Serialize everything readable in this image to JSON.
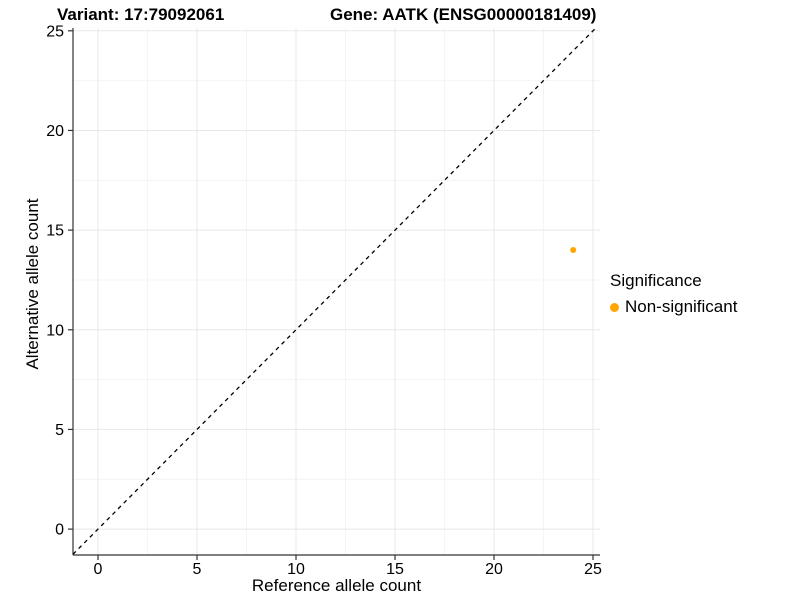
{
  "colors": {
    "accent_orange": "#FFA500",
    "axis_line": "#333333",
    "tick_mark": "#333333",
    "grid_major": "#E8E8E8",
    "grid_minor": "#F4F4F4",
    "reference_line": "#000000",
    "text": "#000000",
    "background": "#FFFFFF"
  },
  "chart_data": {
    "type": "scatter",
    "title_left": "Variant: 17:79092061",
    "title_right": "Gene: AATK (ENSG00000181409)",
    "xlabel": "Reference allele count",
    "ylabel": "Alternative allele count",
    "x_ticks": [
      0,
      5,
      10,
      15,
      20,
      25
    ],
    "y_ticks": [
      0,
      5,
      10,
      15,
      20,
      25
    ],
    "minor_ticks": [
      2.5,
      7.5,
      12.5,
      17.5,
      22.5
    ],
    "xlim": [
      -1.263,
      25.353
    ],
    "ylim": [
      -1.3,
      25.14
    ],
    "grid": true,
    "legend_position": "right",
    "reference_line": {
      "type": "abline",
      "slope": 1,
      "intercept": 0,
      "style": "dashed"
    },
    "points": [
      {
        "x": 24,
        "y": 14,
        "series": "Non-significant",
        "color": "#FFA500"
      }
    ],
    "legend": {
      "title": "Significance",
      "items": [
        {
          "label": "Non-significant",
          "color": "#FFA500"
        }
      ]
    }
  }
}
